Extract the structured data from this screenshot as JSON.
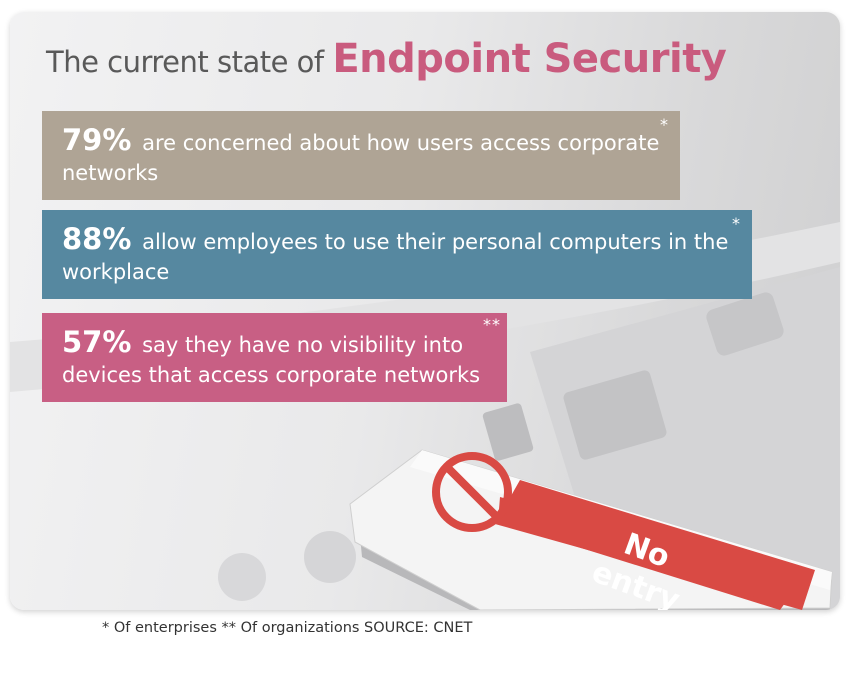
{
  "title": {
    "lead": "The current state of",
    "accent": "Endpoint Security"
  },
  "stats": [
    {
      "percent": "79%",
      "text": "are concerned about how users access corporate networks",
      "marker": "*",
      "color": "#afa495"
    },
    {
      "percent": "88%",
      "text": "allow employees to use their personal computers in the workplace",
      "marker": "*",
      "color": "#5688a0"
    },
    {
      "percent": "57%",
      "text": "say they have no visibility into devices that access corporate networks",
      "marker": "**",
      "color": "#c85f84"
    }
  ],
  "usb_label": {
    "line1": "No",
    "line2": "entry"
  },
  "icons": {
    "no_entry": "prohibited-icon"
  },
  "footnote": "* Of enterprises ** Of organizations SOURCE: CNET",
  "colors": {
    "title_accent": "#c95b7e",
    "usb_label_bg": "#d94a44"
  }
}
